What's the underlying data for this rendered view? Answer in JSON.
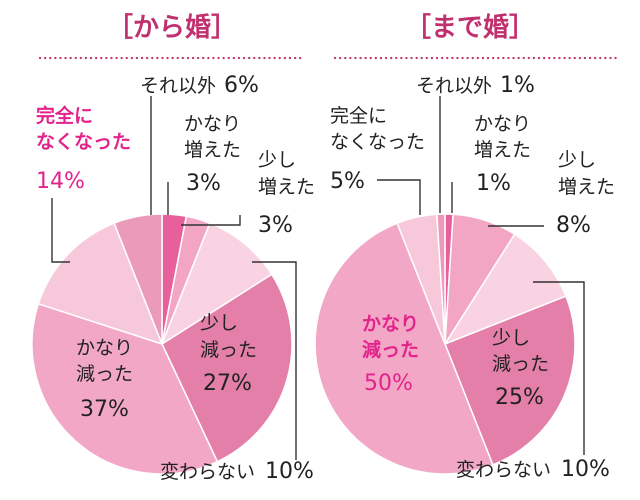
{
  "chart_data": [
    {
      "type": "pie",
      "title": "［から婚］",
      "slices": [
        {
          "label": "かなり増えた",
          "value": 3,
          "color": "#e8609b"
        },
        {
          "label": "少し増えた",
          "value": 3,
          "color": "#f3a6c4"
        },
        {
          "label": "変わらない",
          "value": 10,
          "color": "#f9d3e2"
        },
        {
          "label": "少し減った",
          "value": 27,
          "color": "#e47fa9"
        },
        {
          "label": "かなり減った",
          "value": 37,
          "color": "#f2a7c6"
        },
        {
          "label": "完全になくなった",
          "value": 14,
          "color": "#f7c8da"
        },
        {
          "label": "それ以外",
          "value": 6,
          "color": "#ec9aba"
        }
      ]
    },
    {
      "type": "pie",
      "title": "［まで婚］",
      "slices": [
        {
          "label": "かなり増えた",
          "value": 1,
          "color": "#e8609b"
        },
        {
          "label": "少し増えた",
          "value": 8,
          "color": "#f3a6c4"
        },
        {
          "label": "変わらない",
          "value": 10,
          "color": "#f9d3e2"
        },
        {
          "label": "少し減った",
          "value": 25,
          "color": "#e47fa9"
        },
        {
          "label": "かなり減った",
          "value": 50,
          "color": "#f2a7c6"
        },
        {
          "label": "完全になくなった",
          "value": 5,
          "color": "#f7c8da"
        },
        {
          "label": "それ以外",
          "value": 1,
          "color": "#ec9aba"
        }
      ]
    }
  ],
  "labels": {
    "left": {
      "other": "それ以外",
      "other_pct": "6%",
      "big_up_1": "かなり",
      "big_up_2": "増えた",
      "big_up_pct": "3%",
      "small_up_1": "少し",
      "small_up_2": "増えた",
      "small_up_pct": "3%",
      "small_down_1": "少し",
      "small_down_2": "減った",
      "small_down_pct": "27%",
      "big_down_1": "かなり",
      "big_down_2": "減った",
      "big_down_pct": "37%",
      "gone_1": "完全に",
      "gone_2": "なくなった",
      "gone_pct": "14%",
      "same": "変わらない",
      "same_pct": "10%"
    },
    "right": {
      "other": "それ以外",
      "other_pct": "1%",
      "big_up_1": "かなり",
      "big_up_2": "増えた",
      "big_up_pct": "1%",
      "small_up_1": "少し",
      "small_up_2": "増えた",
      "small_up_pct": "8%",
      "small_down_1": "少し",
      "small_down_2": "減った",
      "small_down_pct": "25%",
      "big_down_1": "かなり",
      "big_down_2": "減った",
      "big_down_pct": "50%",
      "gone_1": "完全に",
      "gone_2": "なくなった",
      "gone_pct": "5%",
      "same": "変わらない",
      "same_pct": "10%"
    }
  }
}
